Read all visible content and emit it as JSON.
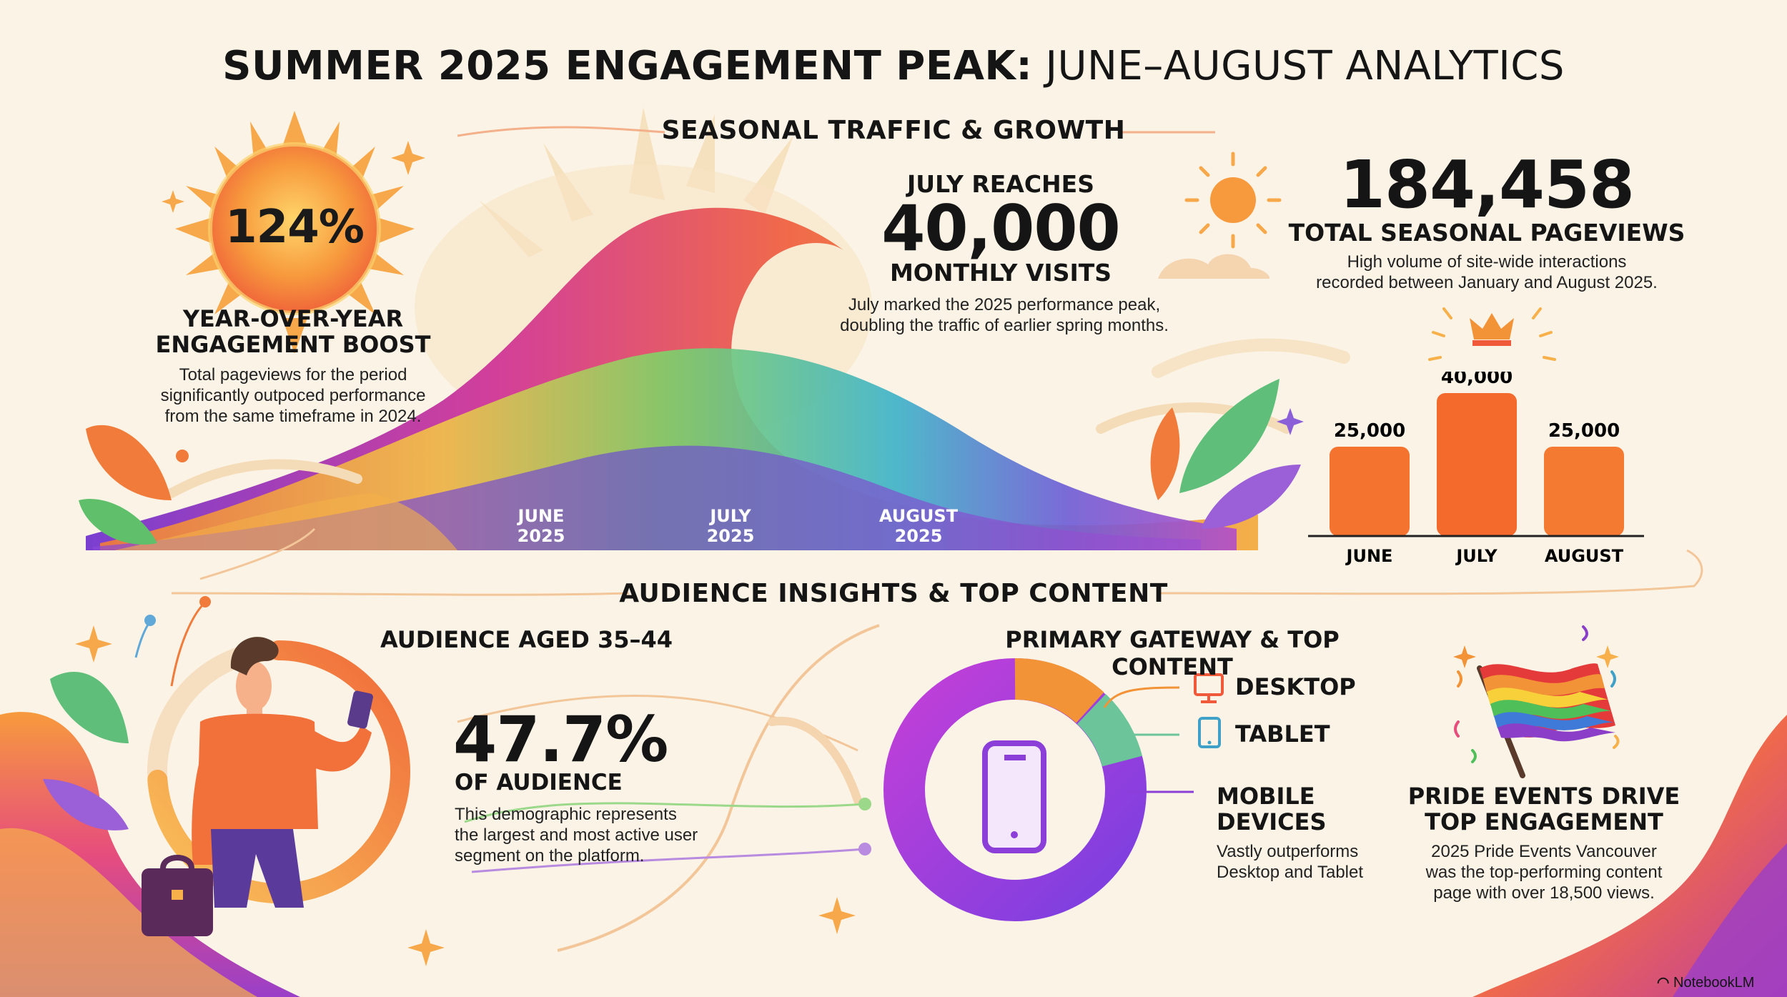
{
  "title": {
    "bold": "SUMMER 2025 ENGAGEMENT PEAK:",
    "light": "JUNE–AUGUST ANALYTICS"
  },
  "sections": {
    "traffic": "SEASONAL TRAFFIC & GROWTH",
    "audience": "AUDIENCE INSIGHTS & TOP CONTENT"
  },
  "yoy": {
    "value": "124%",
    "heading_line1": "YEAR-OVER-YEAR",
    "heading_line2": "ENGAGEMENT BOOST",
    "body": [
      "Total pageviews for the period",
      "significantly outpoced performance",
      "from the same timeframe in 2024."
    ]
  },
  "wave": {
    "months": [
      [
        "JUNE",
        "2025"
      ],
      [
        "JULY",
        "2025"
      ],
      [
        "AUGUST",
        "2025"
      ]
    ]
  },
  "july": {
    "pre": "JULY REACHES",
    "value": "40,000",
    "post": "MONTHLY VISITS",
    "body": [
      "July marked the 2025 performance peak,",
      "doubling the traffic of earlier spring months."
    ]
  },
  "total": {
    "value": "184,458",
    "label": "TOTAL SEASONAL PAGEVIEWS",
    "body": [
      "High volume of site-wide interactions",
      "recorded between January and August 2025."
    ]
  },
  "chart_data": {
    "type": "bar",
    "categories": [
      "JUNE",
      "JULY",
      "AUGUST"
    ],
    "values": [
      25000,
      40000,
      25000
    ],
    "value_labels": [
      "25,000",
      "40,000",
      "25,000"
    ],
    "ylim": [
      0,
      40000
    ],
    "grid": false,
    "colors": [
      "#f4732f",
      "#f46a2c",
      "#f47a31"
    ]
  },
  "audience": {
    "heading": "AUDIENCE AGED 35–44",
    "value": "47.7%",
    "label": "OF AUDIENCE",
    "body": [
      "This demographic represents",
      "the largest and most active user",
      "segment on the platform."
    ],
    "share": 0.477
  },
  "gateway": {
    "heading": "PRIMARY GATEWAY & TOP CONTENT",
    "desktop": "DESKTOP",
    "tablet": "TABLET",
    "mobile_line1": "MOBILE",
    "mobile_line2": "DEVICES",
    "body": [
      "Vastly outperforms",
      "Desktop and Tablet"
    ],
    "colors": {
      "mobile": "#9b3fe0",
      "desktop": "#f39338",
      "tablet": "#5fbf9a"
    }
  },
  "pride": {
    "heading_line1": "PRIDE EVENTS DRIVE",
    "heading_line2": "TOP ENGAGEMENT",
    "body": [
      "2025 Pride Events Vancouver",
      "was the top-performing content",
      "page with over 18,500 views."
    ]
  },
  "brand": "NotebookLM"
}
